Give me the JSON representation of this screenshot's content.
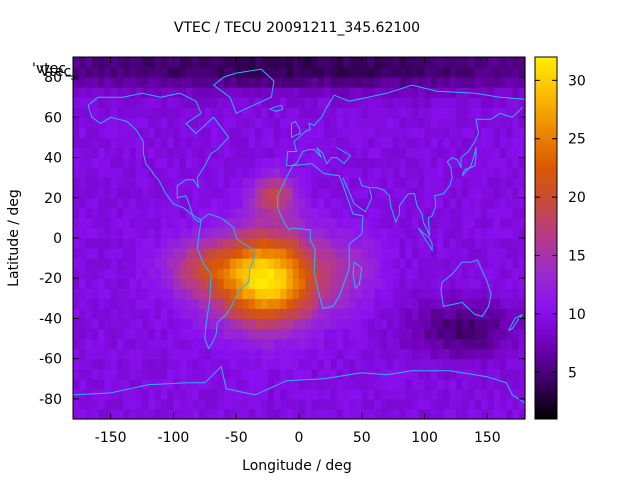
{
  "chart_data": {
    "type": "heatmap",
    "title": "VTEC / TECU 20091211_345.62100",
    "xlabel": "Longitude / deg",
    "ylabel": "Latitude / deg",
    "legend_key": "'vtec_",
    "legend_key_overlap": "'Vtec_",
    "xlim": [
      -180,
      180
    ],
    "ylim": [
      -90,
      90
    ],
    "xticks": [
      -150,
      -100,
      -50,
      0,
      50,
      100,
      150
    ],
    "yticks": [
      -80,
      -60,
      -40,
      -20,
      0,
      20,
      40,
      60,
      80
    ],
    "xtick_labels": [
      "-150",
      "-100",
      "-50",
      "0",
      "50",
      "100",
      "150"
    ],
    "ytick_labels": [
      "-80",
      "-60",
      "-40",
      "-20",
      "0",
      "20",
      "40",
      "60",
      "80"
    ],
    "colorbar": {
      "range": [
        1,
        32
      ],
      "ticks": [
        5,
        10,
        15,
        20,
        25,
        30
      ],
      "tick_labels": [
        "5",
        "10",
        "15",
        "20",
        "25",
        "30"
      ],
      "palette": [
        "#000000",
        "#3a0060",
        "#6f00b5",
        "#8a10f0",
        "#9a2ad0",
        "#b53a8a",
        "#c84a3a",
        "#dc5a00",
        "#ee8a00",
        "#fbbe00",
        "#ffee00"
      ]
    },
    "grid": {
      "lon_step_deg": 5,
      "lat_step_deg": 5,
      "base_tec": 9.5,
      "peaks": [
        {
          "lon": -25,
          "lat": -20,
          "amp": 22,
          "sigma_lon": 28,
          "sigma_lat": 16
        },
        {
          "lon": -78,
          "lat": -15,
          "amp": 7,
          "sigma_lon": 22,
          "sigma_lat": 10
        },
        {
          "lon": -20,
          "lat": 22,
          "amp": 9,
          "sigma_lon": 12,
          "sigma_lat": 7
        },
        {
          "lon": 40,
          "lat": -15,
          "amp": 4,
          "sigma_lon": 18,
          "sigma_lat": 12
        },
        {
          "lon": 130,
          "lat": -45,
          "amp": -5,
          "sigma_lon": 30,
          "sigma_lat": 10
        },
        {
          "lon": 0,
          "lat": 85,
          "amp": -6,
          "sigma_lon": 200,
          "sigma_lat": 8
        }
      ]
    },
    "coastlines": [
      [
        [
          -168,
          66
        ],
        [
          -160,
          70
        ],
        [
          -140,
          70
        ],
        [
          -125,
          72
        ],
        [
          -110,
          70
        ],
        [
          -95,
          72
        ],
        [
          -82,
          68
        ],
        [
          -78,
          62
        ],
        [
          -90,
          57
        ],
        [
          -82,
          52
        ],
        [
          -68,
          60
        ],
        [
          -62,
          55
        ],
        [
          -56,
          50
        ],
        [
          -65,
          44
        ],
        [
          -70,
          42
        ],
        [
          -75,
          36
        ],
        [
          -81,
          30
        ],
        [
          -80,
          25
        ],
        [
          -84,
          29
        ],
        [
          -90,
          29
        ],
        [
          -97,
          26
        ],
        [
          -97,
          20
        ],
        [
          -90,
          21
        ],
        [
          -87,
          16
        ],
        [
          -84,
          10
        ],
        [
          -80,
          8
        ],
        [
          -78,
          9
        ],
        [
          -86,
          12
        ],
        [
          -92,
          15
        ],
        [
          -100,
          17
        ],
        [
          -106,
          22
        ],
        [
          -112,
          29
        ],
        [
          -115,
          31
        ],
        [
          -117,
          33
        ],
        [
          -122,
          37
        ],
        [
          -124,
          42
        ],
        [
          -124,
          48
        ],
        [
          -130,
          54
        ],
        [
          -137,
          58
        ],
        [
          -150,
          60
        ],
        [
          -158,
          57
        ],
        [
          -165,
          60
        ],
        [
          -168,
          66
        ]
      ],
      [
        [
          -78,
          9
        ],
        [
          -72,
          12
        ],
        [
          -62,
          10
        ],
        [
          -52,
          5
        ],
        [
          -50,
          0
        ],
        [
          -44,
          -3
        ],
        [
          -35,
          -6
        ],
        [
          -35,
          -9
        ],
        [
          -39,
          -15
        ],
        [
          -40,
          -22
        ],
        [
          -48,
          -26
        ],
        [
          -53,
          -33
        ],
        [
          -58,
          -38
        ],
        [
          -65,
          -42
        ],
        [
          -66,
          -48
        ],
        [
          -69,
          -52
        ],
        [
          -72,
          -55
        ],
        [
          -75,
          -50
        ],
        [
          -74,
          -43
        ],
        [
          -71,
          -30
        ],
        [
          -70,
          -18
        ],
        [
          -76,
          -13
        ],
        [
          -81,
          -5
        ],
        [
          -80,
          0
        ],
        [
          -78,
          9
        ]
      ],
      [
        [
          -17,
          21
        ],
        [
          -10,
          30
        ],
        [
          -5,
          36
        ],
        [
          10,
          37
        ],
        [
          20,
          32
        ],
        [
          32,
          31
        ],
        [
          34,
          28
        ],
        [
          43,
          12
        ],
        [
          51,
          11
        ],
        [
          50,
          2
        ],
        [
          40,
          -3
        ],
        [
          40,
          -15
        ],
        [
          35,
          -24
        ],
        [
          32,
          -29
        ],
        [
          27,
          -34
        ],
        [
          19,
          -35
        ],
        [
          16,
          -28
        ],
        [
          12,
          -17
        ],
        [
          13,
          -6
        ],
        [
          9,
          -1
        ],
        [
          9,
          4
        ],
        [
          -5,
          5
        ],
        [
          -8,
          4
        ],
        [
          -13,
          9
        ],
        [
          -17,
          15
        ],
        [
          -17,
          21
        ]
      ],
      [
        [
          -10,
          36
        ],
        [
          -9,
          43
        ],
        [
          -2,
          43
        ],
        [
          -4,
          48
        ],
        [
          0,
          50
        ],
        [
          5,
          53
        ],
        [
          9,
          54
        ],
        [
          8,
          57
        ],
        [
          12,
          56
        ],
        [
          18,
          60
        ],
        [
          22,
          65
        ],
        [
          28,
          71
        ],
        [
          40,
          68
        ],
        [
          55,
          70
        ],
        [
          70,
          72
        ],
        [
          90,
          76
        ],
        [
          110,
          73
        ],
        [
          140,
          72
        ],
        [
          160,
          70
        ],
        [
          180,
          69
        ]
      ],
      [
        [
          30,
          45
        ],
        [
          41,
          41
        ],
        [
          36,
          37
        ],
        [
          30,
          40
        ],
        [
          26,
          40
        ],
        [
          22,
          37
        ],
        [
          19,
          42
        ],
        [
          14,
          45
        ],
        [
          18,
          40
        ],
        [
          12,
          44
        ],
        [
          8,
          44
        ],
        [
          3,
          43
        ],
        [
          -2,
          37
        ],
        [
          -6,
          36
        ],
        [
          -10,
          36
        ]
      ],
      [
        [
          35,
          30
        ],
        [
          44,
          17
        ],
        [
          53,
          13
        ],
        [
          58,
          20
        ],
        [
          56,
          25
        ],
        [
          50,
          26
        ],
        [
          48,
          30
        ]
      ],
      [
        [
          57,
          25
        ],
        [
          62,
          25
        ],
        [
          67,
          24
        ],
        [
          72,
          21
        ],
        [
          73,
          16
        ],
        [
          77,
          8
        ],
        [
          80,
          12
        ],
        [
          80,
          16
        ],
        [
          87,
          22
        ],
        [
          92,
          22
        ],
        [
          94,
          16
        ],
        [
          98,
          12
        ],
        [
          99,
          8
        ],
        [
          102,
          4
        ],
        [
          104,
          1
        ],
        [
          103,
          10
        ],
        [
          106,
          11
        ],
        [
          109,
          16
        ],
        [
          108,
          21
        ],
        [
          115,
          22
        ],
        [
          120,
          26
        ],
        [
          122,
          30
        ],
        [
          121,
          35
        ],
        [
          118,
          38
        ],
        [
          122,
          40
        ],
        [
          126,
          39
        ],
        [
          129,
          35
        ],
        [
          129,
          40
        ],
        [
          135,
          43
        ],
        [
          140,
          48
        ],
        [
          143,
          52
        ],
        [
          141,
          59
        ],
        [
          153,
          59
        ],
        [
          160,
          62
        ],
        [
          170,
          60
        ],
        [
          178,
          65
        ]
      ],
      [
        [
          114,
          -22
        ],
        [
          122,
          -18
        ],
        [
          130,
          -12
        ],
        [
          137,
          -12
        ],
        [
          142,
          -11
        ],
        [
          145,
          -15
        ],
        [
          150,
          -22
        ],
        [
          153,
          -28
        ],
        [
          151,
          -34
        ],
        [
          146,
          -39
        ],
        [
          140,
          -38
        ],
        [
          135,
          -35
        ],
        [
          130,
          -32
        ],
        [
          115,
          -34
        ],
        [
          113,
          -26
        ],
        [
          114,
          -22
        ]
      ],
      [
        [
          -50,
          82
        ],
        [
          -30,
          84
        ],
        [
          -20,
          78
        ],
        [
          -22,
          70
        ],
        [
          -40,
          65
        ],
        [
          -50,
          62
        ],
        [
          -55,
          70
        ],
        [
          -68,
          76
        ],
        [
          -60,
          80
        ],
        [
          -50,
          82
        ]
      ],
      [
        [
          -180,
          -78
        ],
        [
          -150,
          -77
        ],
        [
          -120,
          -73
        ],
        [
          -90,
          -72
        ],
        [
          -75,
          -72
        ],
        [
          -62,
          -64
        ],
        [
          -58,
          -75
        ],
        [
          -35,
          -78
        ],
        [
          -10,
          -71
        ],
        [
          20,
          -70
        ],
        [
          50,
          -67
        ],
        [
          70,
          -68
        ],
        [
          90,
          -66
        ],
        [
          120,
          -66
        ],
        [
          150,
          -69
        ],
        [
          165,
          -72
        ],
        [
          170,
          -78
        ],
        [
          180,
          -82
        ]
      ],
      [
        [
          44,
          -12
        ],
        [
          50,
          -15
        ],
        [
          48,
          -23
        ],
        [
          45,
          -25
        ],
        [
          43,
          -18
        ],
        [
          44,
          -12
        ]
      ],
      [
        [
          -6,
          50
        ],
        [
          -3,
          51
        ],
        [
          1,
          52
        ],
        [
          0,
          55
        ],
        [
          -3,
          58
        ],
        [
          -6,
          57
        ],
        [
          -6,
          50
        ]
      ],
      [
        [
          130,
          31
        ],
        [
          132,
          34
        ],
        [
          137,
          35
        ],
        [
          140,
          36
        ],
        [
          141,
          40
        ],
        [
          141,
          45
        ],
        [
          140,
          42
        ],
        [
          137,
          36
        ],
        [
          133,
          33
        ],
        [
          130,
          31
        ]
      ],
      [
        [
          95,
          5
        ],
        [
          102,
          -2
        ],
        [
          106,
          -6
        ],
        [
          106,
          -3
        ],
        [
          104,
          0
        ],
        [
          98,
          3
        ],
        [
          95,
          5
        ]
      ],
      [
        [
          167,
          -46
        ],
        [
          172,
          -40
        ],
        [
          178,
          -38
        ],
        [
          174,
          -41
        ],
        [
          170,
          -45
        ],
        [
          167,
          -46
        ]
      ],
      [
        [
          -20,
          65
        ],
        [
          -14,
          66
        ],
        [
          -13,
          64
        ],
        [
          -18,
          63
        ],
        [
          -23,
          64
        ],
        [
          -20,
          65
        ]
      ]
    ]
  }
}
